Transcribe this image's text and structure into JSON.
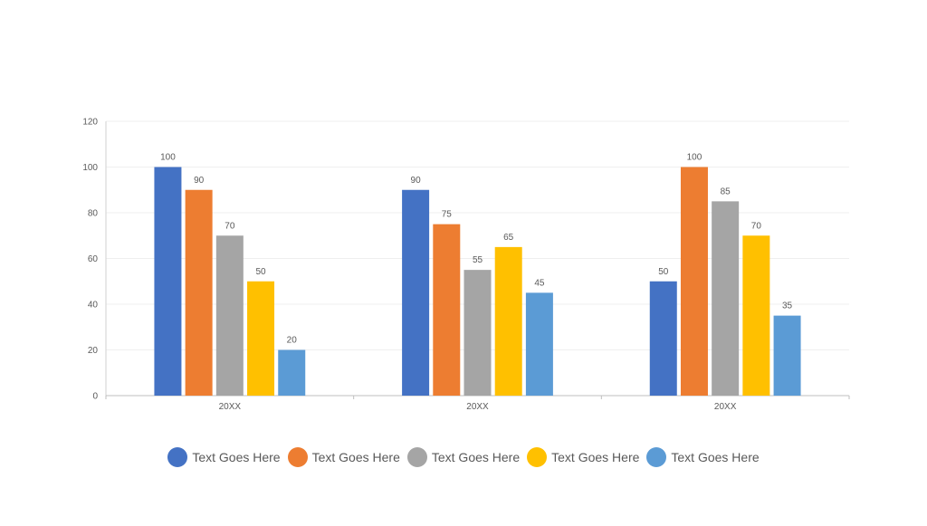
{
  "chart_data": {
    "type": "bar",
    "categories": [
      "20XX",
      "20XX",
      "20XX"
    ],
    "series": [
      {
        "name": "Text Goes Here",
        "color": "#4472C4",
        "values": [
          100,
          90,
          50
        ]
      },
      {
        "name": "Text Goes Here",
        "color": "#ED7D31",
        "values": [
          90,
          75,
          100
        ]
      },
      {
        "name": "Text Goes Here",
        "color": "#A5A5A5",
        "values": [
          70,
          55,
          85
        ]
      },
      {
        "name": "Text Goes Here",
        "color": "#FFC000",
        "values": [
          50,
          65,
          70
        ]
      },
      {
        "name": "Text Goes Here",
        "color": "#5B9BD5",
        "values": [
          20,
          45,
          35
        ]
      }
    ],
    "ylim": [
      0,
      120
    ],
    "yticks": [
      0,
      20,
      40,
      60,
      80,
      100,
      120
    ],
    "grid": true,
    "legend_position": "bottom",
    "data_labels": true
  }
}
